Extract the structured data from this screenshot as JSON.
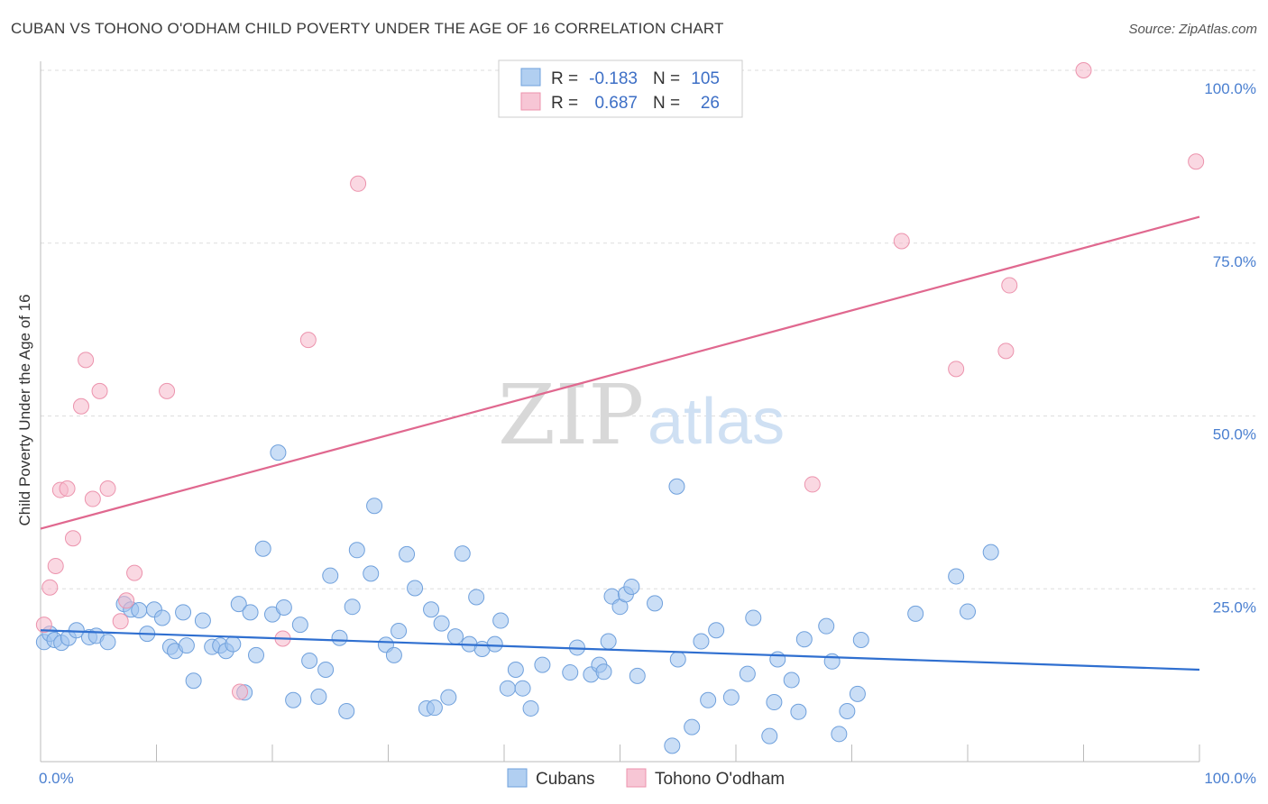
{
  "title": "CUBAN VS TOHONO O'ODHAM CHILD POVERTY UNDER THE AGE OF 16 CORRELATION CHART",
  "source": "Source: ZipAtlas.com",
  "watermark": {
    "zip": "ZIP",
    "atlas": "atlas"
  },
  "legend": {
    "r_label": "R =",
    "n_label": "N =",
    "rows": [
      {
        "r": "-0.183",
        "n": "105",
        "color": "#9ec3ee"
      },
      {
        "r": "0.687",
        "n": "26",
        "color": "#f5b8ca"
      }
    ]
  },
  "bottom_legend": [
    "Cubans",
    "Tohono O'odham"
  ],
  "chart_data": {
    "type": "scatter",
    "title": "CUBAN VS TOHONO O'ODHAM CHILD POVERTY UNDER THE AGE OF 16 CORRELATION CHART",
    "xlabel": "",
    "ylabel": "Child Poverty Under the Age of 16",
    "xlim": [
      0,
      100
    ],
    "ylim": [
      0,
      100
    ],
    "x_tick_labels": [
      "0.0%",
      "100.0%"
    ],
    "y_ticks": [
      25,
      50,
      75,
      100
    ],
    "y_tick_labels": [
      "25.0%",
      "50.0%",
      "75.0%",
      "100.0%"
    ],
    "grid": true,
    "series": [
      {
        "name": "Cubans",
        "color": "#9ec3ee",
        "stroke": "#6fa0dc",
        "trend": {
          "x": [
            0,
            100
          ],
          "y": [
            19.0,
            13.3
          ],
          "color": "#2f6fd0"
        },
        "points": [
          [
            0.3,
            17.3
          ],
          [
            0.8,
            18.5
          ],
          [
            1.2,
            17.6
          ],
          [
            1.8,
            17.2
          ],
          [
            2.4,
            17.9
          ],
          [
            3.1,
            19.0
          ],
          [
            4.2,
            18.0
          ],
          [
            4.8,
            18.2
          ],
          [
            5.8,
            17.3
          ],
          [
            7.2,
            22.8
          ],
          [
            7.8,
            22.0
          ],
          [
            8.5,
            21.9
          ],
          [
            9.2,
            18.5
          ],
          [
            9.8,
            22.0
          ],
          [
            10.5,
            20.8
          ],
          [
            11.2,
            16.6
          ],
          [
            11.6,
            16.0
          ],
          [
            12.3,
            21.6
          ],
          [
            12.6,
            16.8
          ],
          [
            13.2,
            11.7
          ],
          [
            14.0,
            20.4
          ],
          [
            14.8,
            16.6
          ],
          [
            15.5,
            16.8
          ],
          [
            16.0,
            16.0
          ],
          [
            16.6,
            17.0
          ],
          [
            17.1,
            22.8
          ],
          [
            17.6,
            10.0
          ],
          [
            18.1,
            21.6
          ],
          [
            18.6,
            15.4
          ],
          [
            19.2,
            30.8
          ],
          [
            20.0,
            21.3
          ],
          [
            20.5,
            44.7
          ],
          [
            21.0,
            22.3
          ],
          [
            21.8,
            8.9
          ],
          [
            22.4,
            19.8
          ],
          [
            23.2,
            14.6
          ],
          [
            24.0,
            9.4
          ],
          [
            24.6,
            13.3
          ],
          [
            25.0,
            26.9
          ],
          [
            25.8,
            17.9
          ],
          [
            26.4,
            7.3
          ],
          [
            26.9,
            22.4
          ],
          [
            27.3,
            30.6
          ],
          [
            28.5,
            27.2
          ],
          [
            28.8,
            37.0
          ],
          [
            29.8,
            16.9
          ],
          [
            30.5,
            15.4
          ],
          [
            30.9,
            18.9
          ],
          [
            31.6,
            30.0
          ],
          [
            32.3,
            25.1
          ],
          [
            33.3,
            7.7
          ],
          [
            33.7,
            22.0
          ],
          [
            34.0,
            7.8
          ],
          [
            34.6,
            20.0
          ],
          [
            35.2,
            9.3
          ],
          [
            35.8,
            18.1
          ],
          [
            36.4,
            30.1
          ],
          [
            37.0,
            17.0
          ],
          [
            37.6,
            23.8
          ],
          [
            38.1,
            16.3
          ],
          [
            39.2,
            17.0
          ],
          [
            39.7,
            20.4
          ],
          [
            40.3,
            10.6
          ],
          [
            41.0,
            13.3
          ],
          [
            41.6,
            10.6
          ],
          [
            42.3,
            7.7
          ],
          [
            43.3,
            14.0
          ],
          [
            45.7,
            12.9
          ],
          [
            46.3,
            16.5
          ],
          [
            47.5,
            12.6
          ],
          [
            48.2,
            14.0
          ],
          [
            48.6,
            13.0
          ],
          [
            49.0,
            17.4
          ],
          [
            49.3,
            23.9
          ],
          [
            50.0,
            22.4
          ],
          [
            50.5,
            24.2
          ],
          [
            51.0,
            25.3
          ],
          [
            51.5,
            12.4
          ],
          [
            53.0,
            22.9
          ],
          [
            54.5,
            2.3
          ],
          [
            54.9,
            39.8
          ],
          [
            55.0,
            14.8
          ],
          [
            56.2,
            5.0
          ],
          [
            57.0,
            17.4
          ],
          [
            57.6,
            8.9
          ],
          [
            58.3,
            19.0
          ],
          [
            59.6,
            9.3
          ],
          [
            61.0,
            12.7
          ],
          [
            61.5,
            20.8
          ],
          [
            62.9,
            3.7
          ],
          [
            63.3,
            8.6
          ],
          [
            63.6,
            14.8
          ],
          [
            64.8,
            11.8
          ],
          [
            65.4,
            7.2
          ],
          [
            65.9,
            17.7
          ],
          [
            67.8,
            19.6
          ],
          [
            68.3,
            14.5
          ],
          [
            68.9,
            4.0
          ],
          [
            69.6,
            7.3
          ],
          [
            70.5,
            9.8
          ],
          [
            70.8,
            17.6
          ],
          [
            75.5,
            21.4
          ],
          [
            79.0,
            26.8
          ],
          [
            80.0,
            21.7
          ],
          [
            82.0,
            30.3
          ]
        ]
      },
      {
        "name": "Tohono O'odham",
        "color": "#f5b8ca",
        "stroke": "#ec93ad",
        "trend": {
          "x": [
            0,
            100
          ],
          "y": [
            33.7,
            78.8
          ],
          "color": "#e0688f"
        },
        "points": [
          [
            0.3,
            19.8
          ],
          [
            0.8,
            25.2
          ],
          [
            1.3,
            28.3
          ],
          [
            1.7,
            39.3
          ],
          [
            2.3,
            39.5
          ],
          [
            2.8,
            32.3
          ],
          [
            3.5,
            51.4
          ],
          [
            3.9,
            58.1
          ],
          [
            4.5,
            38.0
          ],
          [
            5.1,
            53.6
          ],
          [
            5.8,
            39.5
          ],
          [
            6.9,
            20.3
          ],
          [
            7.4,
            23.3
          ],
          [
            8.1,
            27.3
          ],
          [
            10.9,
            53.6
          ],
          [
            17.2,
            10.1
          ],
          [
            20.9,
            17.8
          ],
          [
            23.1,
            61.0
          ],
          [
            27.4,
            83.6
          ],
          [
            66.6,
            40.1
          ],
          [
            74.3,
            75.3
          ],
          [
            79.0,
            56.8
          ],
          [
            83.3,
            59.4
          ],
          [
            83.6,
            68.9
          ],
          [
            90.0,
            100.0
          ],
          [
            99.7,
            86.8
          ]
        ]
      }
    ]
  }
}
